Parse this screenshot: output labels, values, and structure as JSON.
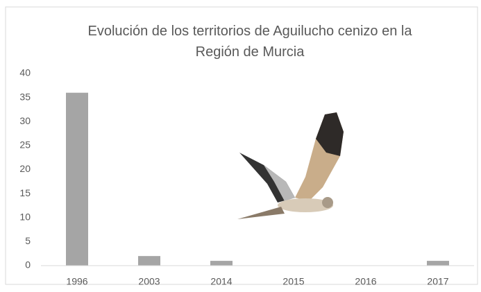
{
  "chart_data": {
    "type": "bar",
    "title": "Evolución de los territorios de Aguilucho cenizo en la Región de Murcia",
    "categories": [
      "1996",
      "2003",
      "2014",
      "2015",
      "2016",
      "2017"
    ],
    "values": [
      36,
      2,
      1,
      0,
      0,
      1
    ],
    "color": "#a5a5a5",
    "ylim": [
      0,
      40
    ],
    "yticks": [
      0,
      5,
      10,
      15,
      20,
      25,
      30,
      35,
      40
    ],
    "grid": false
  }
}
